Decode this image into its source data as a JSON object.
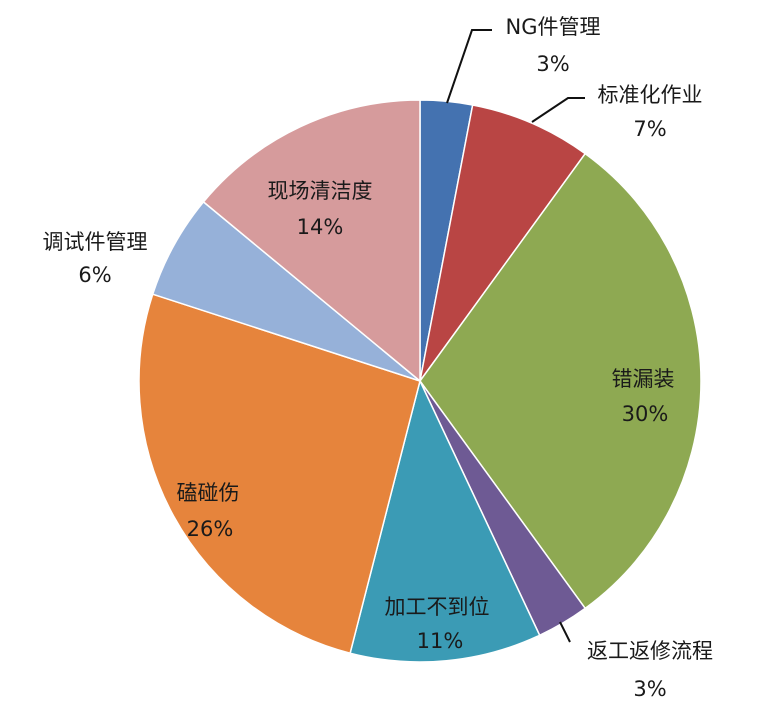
{
  "chart_data": {
    "type": "pie",
    "start_angle": "top, clockwise",
    "slices": [
      {
        "label": "NG件管理",
        "value": 3,
        "value_label": "3%",
        "color": "#4472b0"
      },
      {
        "label": "标准化作业",
        "value": 7,
        "value_label": "7%",
        "color": "#b94544"
      },
      {
        "label": "错漏装",
        "value": 30,
        "value_label": "30%",
        "color": "#8ea952"
      },
      {
        "label": "返工返修流程",
        "value": 3,
        "value_label": "3%",
        "color": "#6e5a94"
      },
      {
        "label": "加工不到位",
        "value": 11,
        "value_label": "11%",
        "color": "#3b9bb5"
      },
      {
        "label": "磕碰伤",
        "value": 26,
        "value_label": "26%",
        "color": "#e6843c"
      },
      {
        "label": "调试件管理",
        "value": 6,
        "value_label": "6%",
        "color": "#96b1d9"
      },
      {
        "label": "现场清洁度",
        "value": 14,
        "value_label": "14%",
        "color": "#d69b9c"
      }
    ]
  }
}
